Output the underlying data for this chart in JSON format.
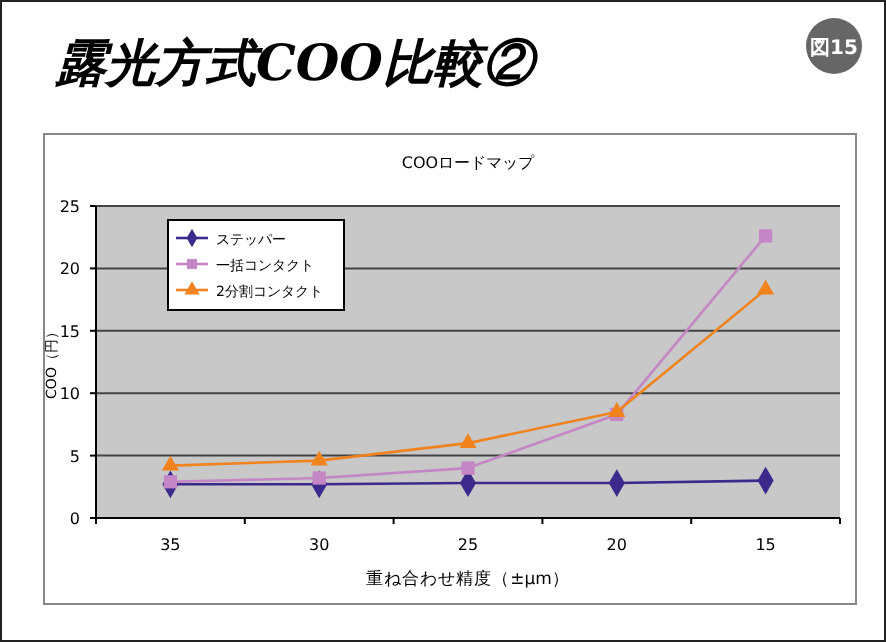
{
  "chart_data": {
    "type": "line",
    "title": "露光方式COO比較②",
    "subtitle": "COOロードマップ",
    "xlabel": "重ね合わせ精度（±μm）",
    "ylabel": "COO（円）",
    "annotations": [
      "図15"
    ],
    "categories": [
      "35",
      "30",
      "25",
      "20",
      "15"
    ],
    "series": [
      {
        "name": "ステッパー",
        "color": "#3b2a8c",
        "marker": "diamond",
        "values": [
          2.7,
          2.7,
          2.8,
          2.8,
          3.0
        ]
      },
      {
        "name": "一括コンタクト",
        "color": "#c486c4",
        "marker": "square",
        "values": [
          2.9,
          3.2,
          4.0,
          8.3,
          22.6
        ]
      },
      {
        "name": "2分割コンタクト",
        "color": "#f0831e",
        "marker": "triangle",
        "values": [
          4.2,
          4.6,
          6.0,
          8.5,
          18.3
        ]
      }
    ],
    "ylim": [
      0,
      25
    ],
    "yticks": [
      0,
      5,
      10,
      15,
      20,
      25
    ],
    "grid": "y",
    "legend": "top left"
  }
}
